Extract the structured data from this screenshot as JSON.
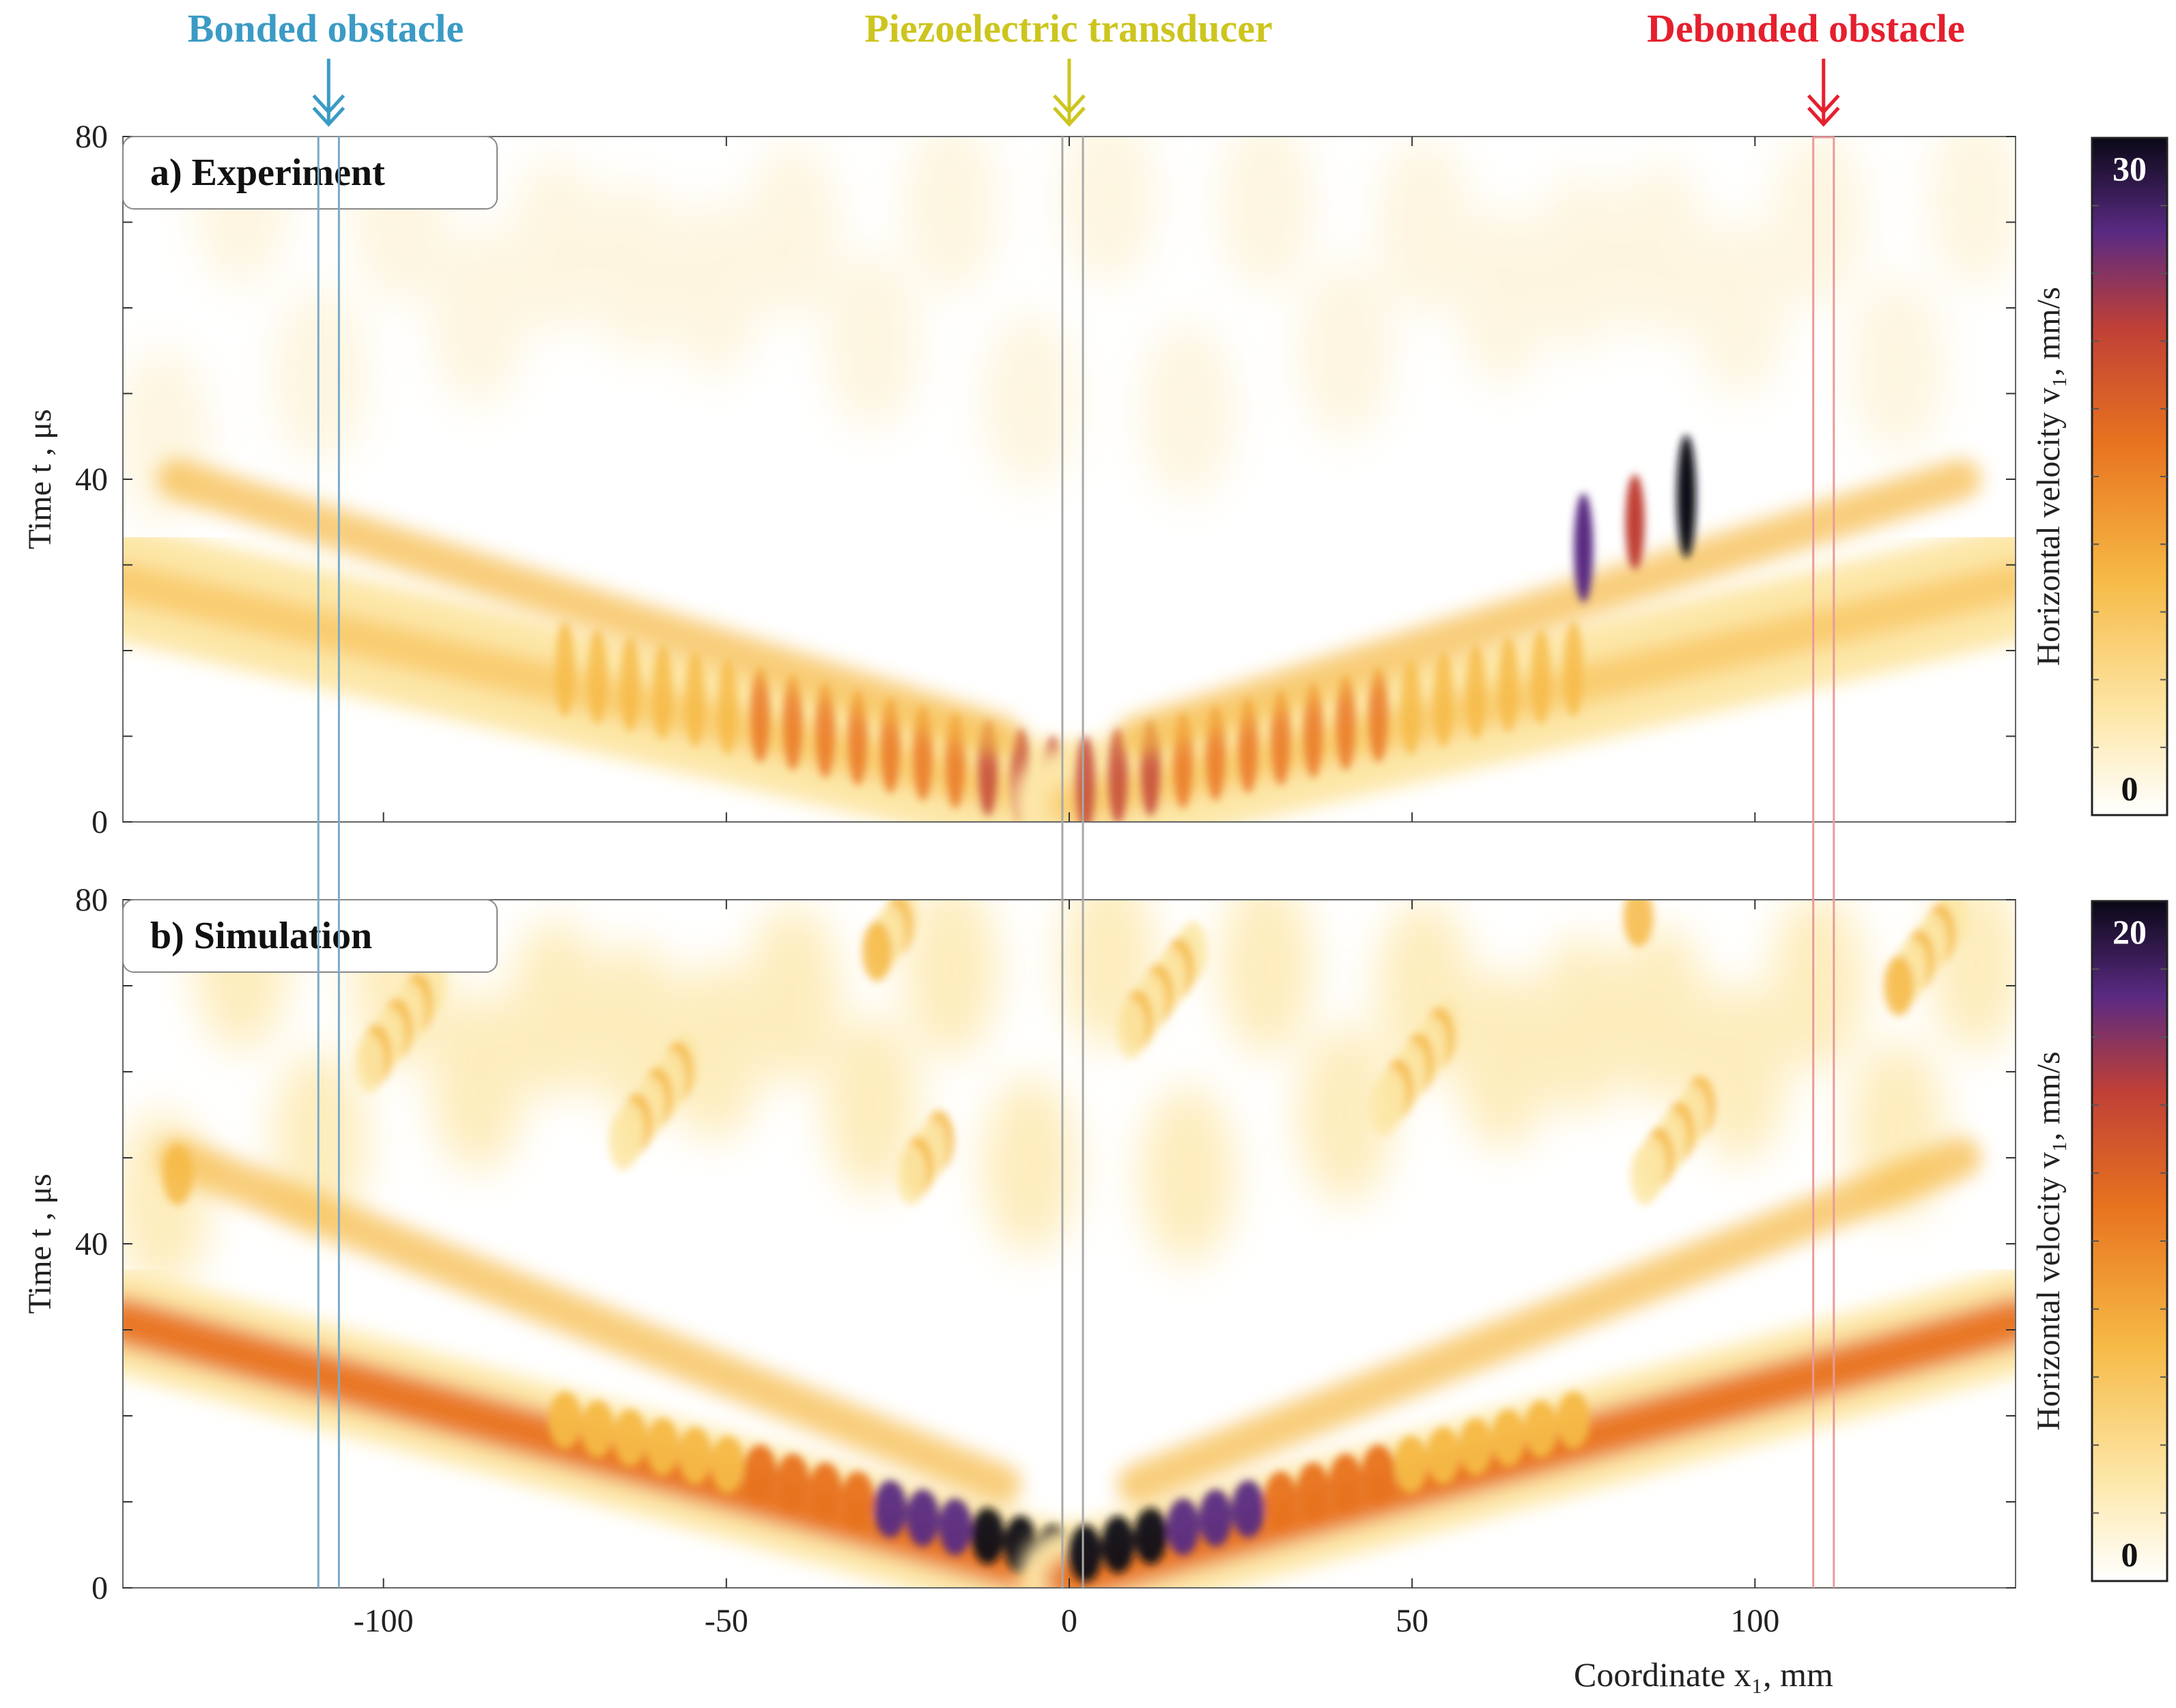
{
  "chart_data": [
    {
      "id": "experiment",
      "type": "heatmap",
      "panel_label": "a) Experiment",
      "xlabel": "Coordinate x₁, mm",
      "ylabel": "Time t , μs",
      "xlim": [
        -138,
        138
      ],
      "ylim": [
        0,
        80
      ],
      "x_ticks": [
        -100,
        -50,
        0,
        50,
        100
      ],
      "y_ticks": [
        0,
        40,
        80
      ],
      "x_tick_labels": [
        "-100",
        "-50",
        "0",
        "50",
        "100"
      ],
      "y_tick_labels": [
        "0",
        "40",
        "80"
      ],
      "colorbar": {
        "label": "Horizontal velocity v₁, mm/s",
        "min": 0,
        "max": 30,
        "min_label": "0",
        "max_label": "30"
      },
      "features": {
        "wave_fronts": [
          {
            "side": "left",
            "points": [
              [
                0,
                2
              ],
              [
                -138,
                28
              ]
            ]
          },
          {
            "side": "right",
            "points": [
              [
                0,
                2
              ],
              [
                138,
                28
              ]
            ]
          }
        ],
        "reflected_front": {
          "points": [
            [
              -10,
              10
            ],
            [
              -130,
              40
            ]
          ]
        },
        "peak_region": {
          "x": [
            75,
            90
          ],
          "t": [
            30,
            40
          ]
        }
      }
    },
    {
      "id": "simulation",
      "type": "heatmap",
      "panel_label": "b) Simulation",
      "xlabel": "Coordinate x₁, mm",
      "ylabel": "Time t , μs",
      "xlim": [
        -138,
        138
      ],
      "ylim": [
        0,
        80
      ],
      "x_ticks": [
        -100,
        -50,
        0,
        50,
        100
      ],
      "y_ticks": [
        0,
        40,
        80
      ],
      "x_tick_labels": [
        "-100",
        "-50",
        "0",
        "50",
        "100"
      ],
      "y_tick_labels": [
        "0",
        "40",
        "80"
      ],
      "colorbar": {
        "label": "Horizontal velocity v₁, mm/s",
        "min": 0,
        "max": 20,
        "min_label": "0",
        "max_label": "20"
      },
      "features": {
        "wave_fronts": [
          {
            "side": "left",
            "points": [
              [
                0,
                1
              ],
              [
                -138,
                31
              ]
            ]
          },
          {
            "side": "right",
            "points": [
              [
                0,
                1
              ],
              [
                138,
                31
              ]
            ]
          }
        ],
        "reflected_front": {
          "points": [
            [
              -10,
              12
            ],
            [
              -130,
              50
            ]
          ]
        }
      }
    }
  ],
  "annotations": {
    "bonded": {
      "text": "Bonded obstacle",
      "x_mm": -108,
      "color": "#3b9bc5"
    },
    "transducer": {
      "text": "Piezoelectric transducer",
      "x_mm": 0,
      "color": "#cdc51e"
    },
    "debonded": {
      "text": "Debonded obstacle",
      "x_mm": 110,
      "color": "#e5202e"
    }
  },
  "obstacle_lines": {
    "bonded": {
      "x_mm": [
        -109.5,
        -106.5
      ],
      "color": "#7aaac8"
    },
    "transducer": {
      "x_mm": [
        -1,
        2
      ],
      "color": "#a8a8a8"
    },
    "debonded": {
      "x_mm": [
        108.5,
        111.5
      ],
      "color": "#e89a9a"
    }
  },
  "colors": {
    "map_low": "#ffffff",
    "map_mid1": "#fde7a8",
    "map_mid2": "#f6b945",
    "map_mid3": "#e8731f",
    "map_mid4": "#c04036",
    "map_mid5": "#5a2a82",
    "map_high": "#0a0816"
  }
}
